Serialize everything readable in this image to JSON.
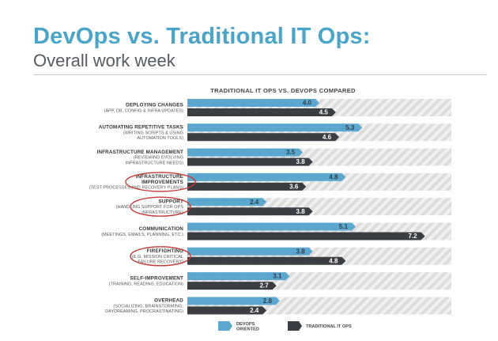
{
  "slide": {
    "title": "DevOps vs. Traditional IT Ops:",
    "subtitle": "Overall work week"
  },
  "colors": {
    "title": "#4aa3c9",
    "devops": "#5ba7cf",
    "traditional": "#3a3d42",
    "stripe_light": "#f1f1f1",
    "stripe_dark": "#dcdcdc",
    "highlight_circle": "#c43a3a"
  },
  "chart_data": {
    "type": "bar",
    "orientation": "horizontal",
    "title": "TRADITIONAL IT OPS VS. DEVOPS COMPARED",
    "xlim": [
      0,
      8
    ],
    "grid": false,
    "legend_position": "bottom",
    "categories": [
      {
        "label": "DEPLOYING CHANGES",
        "sub": [
          "(APP, DB, CONFIG & INFRA UPDATES)"
        ],
        "highlighted": false
      },
      {
        "label": "AUTOMATING REPETITIVE TASKS",
        "sub": [
          "(WRITING SCRIPTS & USING",
          "AUTOMATION TOOLS)"
        ],
        "highlighted": false
      },
      {
        "label": "INFRASTRUCTURE MANAGEMENT",
        "sub": [
          "(REVIEWING EVOLVING",
          "INFRASTRUCTURE NEEDS)"
        ],
        "highlighted": false
      },
      {
        "label": "INFRASTRUCTURE",
        "label2": "IMPROVEMENTS",
        "sub": [
          "(TEST PROCESSES AND RECOVERY PLANS)"
        ],
        "highlighted": true
      },
      {
        "label": "SUPPORT",
        "sub": [
          "(HANDLING SUPPORT FOR OPS",
          "INFRASTRUCTURE)"
        ],
        "highlighted": true
      },
      {
        "label": "COMMUNICATION",
        "sub": [
          "(MEETINGS, EMAILS, PLANNING, ETC.)"
        ],
        "highlighted": false
      },
      {
        "label": "FIREFIGHTING",
        "sub": [
          "(E.G. MISSION CRITICAL",
          "FAILURE RECOVERY)"
        ],
        "highlighted": true
      },
      {
        "label": "SELF-IMPROVEMENT",
        "sub": [
          "(TRAINING, READING, EDUCATION)"
        ],
        "highlighted": false
      },
      {
        "label": "OVERHEAD",
        "sub": [
          "(SOCIALIZING, BRAINSTORMING,",
          "DAYDREAMING, PROCRASTINATING)"
        ],
        "highlighted": false
      }
    ],
    "series": [
      {
        "name": "DEVOPS ORIENTED",
        "legend_lines": [
          "DEVOPS",
          "ORIENTED"
        ],
        "values": [
          4.0,
          5.3,
          3.5,
          4.8,
          2.4,
          5.1,
          3.8,
          3.1,
          2.8
        ]
      },
      {
        "name": "TRADITIONAL IT OPS",
        "legend_lines": [
          "TRADITIONAL IT OPS"
        ],
        "values": [
          4.5,
          4.6,
          3.8,
          3.6,
          3.8,
          7.2,
          4.8,
          2.7,
          2.4
        ]
      }
    ]
  }
}
